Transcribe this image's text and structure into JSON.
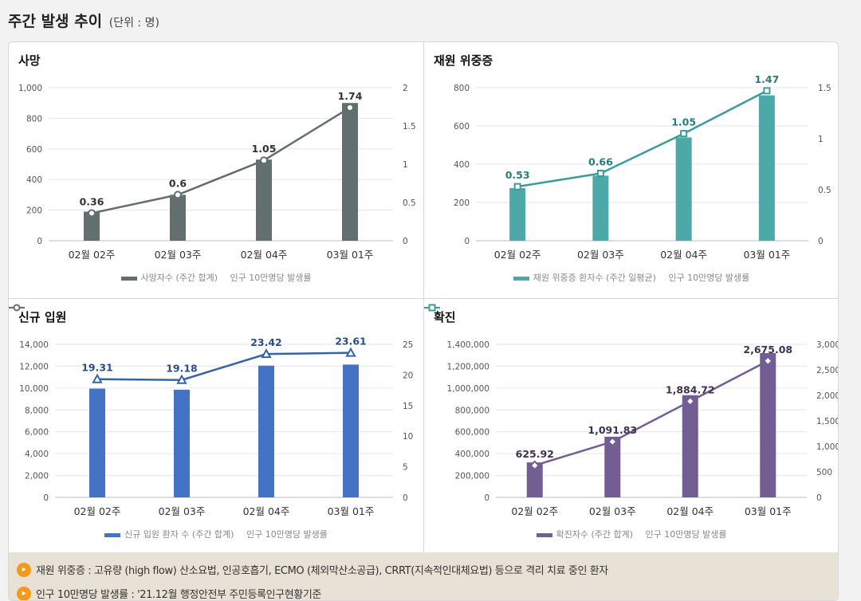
{
  "page": {
    "title": "주간 발생 추이",
    "unit": "(단위 : 명)"
  },
  "chart_data": [
    {
      "id": "deaths",
      "type": "bar+line",
      "title": "사망",
      "categories": [
        "02월 02주",
        "02월 03주",
        "02월 04주",
        "03월 01주"
      ],
      "bar": {
        "name": "사망자수 (주간 합계)",
        "values": [
          190,
          300,
          530,
          900
        ],
        "color": "#636f6e"
      },
      "line": {
        "name": "인구 10만명당 발생률",
        "values": [
          0.36,
          0.6,
          1.05,
          1.74
        ],
        "labels": [
          "0.36",
          "0.6",
          "1.05",
          "1.74"
        ],
        "color": "#636f6e",
        "marker": "circle",
        "label_color": "#333333"
      },
      "y_left": {
        "min": 0,
        "max": 1000,
        "ticks": [
          "0",
          "200",
          "400",
          "600",
          "800",
          "1,000"
        ]
      },
      "y_right": {
        "min": 0,
        "max": 2,
        "ticks": [
          "0",
          "0.5",
          "1",
          "1.5",
          "2"
        ]
      }
    },
    {
      "id": "severe",
      "type": "bar+line",
      "title": "재원 위중증",
      "categories": [
        "02월 02주",
        "02월 03주",
        "02월 04주",
        "03월 01주"
      ],
      "bar": {
        "name": "재원 위중증 환자수 (주간 일평균)",
        "values": [
          275,
          340,
          540,
          760
        ],
        "color": "#4da8a8"
      },
      "line": {
        "name": "인구 10만명당 발생률",
        "values": [
          0.53,
          0.66,
          1.05,
          1.47
        ],
        "labels": [
          "0.53",
          "0.66",
          "1.05",
          "1.47"
        ],
        "color": "#3b9c9c",
        "marker": "square",
        "label_color": "#267d7d"
      },
      "y_left": {
        "min": 0,
        "max": 800,
        "ticks": [
          "0",
          "200",
          "400",
          "600",
          "800"
        ]
      },
      "y_right": {
        "min": 0,
        "max": 1.5,
        "ticks": [
          "0",
          "0.5",
          "1",
          "1.5"
        ]
      }
    },
    {
      "id": "admission",
      "type": "bar+line",
      "title": "신규 입원",
      "categories": [
        "02월 02주",
        "02월 03주",
        "02월 04주",
        "03월 01주"
      ],
      "bar": {
        "name": "신규 입원 환자 수 (주간 합계)",
        "values": [
          9950,
          9850,
          12050,
          12150
        ],
        "color": "#4472c4"
      },
      "line": {
        "name": "인구 10만명당 발생률",
        "values": [
          19.31,
          19.18,
          23.42,
          23.61
        ],
        "labels": [
          "19.31",
          "19.18",
          "23.42",
          "23.61"
        ],
        "color": "#3463a8",
        "marker": "triangle",
        "label_color": "#2a4f86"
      },
      "y_left": {
        "min": 0,
        "max": 14000,
        "ticks": [
          "0",
          "2,000",
          "4,000",
          "6,000",
          "8,000",
          "10,000",
          "12,000",
          "14,000"
        ]
      },
      "y_right": {
        "min": 0,
        "max": 25,
        "ticks": [
          "0",
          "5",
          "10",
          "15",
          "20",
          "25"
        ]
      }
    },
    {
      "id": "confirmed",
      "type": "bar+line",
      "title": "확진",
      "categories": [
        "02월 02주",
        "02월 03주",
        "02월 04주",
        "03월 01주"
      ],
      "bar": {
        "name": "확진자수 (주간 합계)",
        "values": [
          320000,
          555000,
          935000,
          1320000
        ],
        "color": "#735e93"
      },
      "line": {
        "name": "인구 10만명당 발생률",
        "values": [
          625.92,
          1091.83,
          1884.72,
          2675.08
        ],
        "labels": [
          "625.92",
          "1,091.83",
          "1,884.72",
          "2,675.08"
        ],
        "color": "#735e93",
        "marker": "diamond",
        "label_color": "#3d3350"
      },
      "y_left": {
        "min": 0,
        "max": 1400000,
        "ticks": [
          "0",
          "200,000",
          "400,000",
          "600,000",
          "800,000",
          "1,000,000",
          "1,200,000",
          "1,400,000"
        ]
      },
      "y_right": {
        "min": 0,
        "max": 3000,
        "ticks": [
          "0",
          "500",
          "1,000",
          "1,500",
          "2,000",
          "2,500",
          "3,000"
        ]
      }
    }
  ],
  "notes": [
    {
      "icon": "speaker-icon",
      "text": "재원 위중증 : 고유량 (high flow) 산소요법, 인공호흡기, ECMO (체외막산소공급), CRRT(지속적인대체요법) 등으로 격리 치료 중인 환자"
    },
    {
      "icon": "speaker-icon",
      "text": "인구 10만명당 발생률 : '21.12월 행정안전부 주민등록인구현황기준"
    }
  ]
}
